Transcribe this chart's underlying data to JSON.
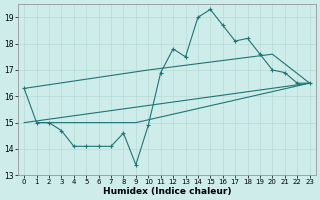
{
  "xlabel": "Humidex (Indice chaleur)",
  "xlim": [
    -0.5,
    23.5
  ],
  "ylim": [
    13,
    19.5
  ],
  "yticks": [
    13,
    14,
    15,
    16,
    17,
    18,
    19
  ],
  "xticks": [
    0,
    1,
    2,
    3,
    4,
    5,
    6,
    7,
    8,
    9,
    10,
    11,
    12,
    13,
    14,
    15,
    16,
    17,
    18,
    19,
    20,
    21,
    22,
    23
  ],
  "bg_color": "#cdecea",
  "line_color": "#1e7575",
  "grid_color": "#b8dcd8",
  "line1_x": [
    0,
    1,
    2,
    3,
    4,
    5,
    6,
    7,
    8,
    9,
    10,
    11,
    12,
    13,
    14,
    15,
    16,
    17,
    18,
    19,
    20,
    21,
    22,
    23
  ],
  "line1_y": [
    16.3,
    15.0,
    15.0,
    14.7,
    14.1,
    14.1,
    14.1,
    14.1,
    14.6,
    13.4,
    14.9,
    16.9,
    17.8,
    17.5,
    19.0,
    19.3,
    18.7,
    18.1,
    18.2,
    17.6,
    17.0,
    16.9,
    16.5,
    16.5
  ],
  "line2_x": [
    0,
    10,
    20,
    23
  ],
  "line2_y": [
    16.3,
    17.0,
    17.6,
    16.5
  ],
  "line3_x": [
    0,
    23
  ],
  "line3_y": [
    15.0,
    16.5
  ],
  "line4_x": [
    1,
    9,
    23
  ],
  "line4_y": [
    15.0,
    15.0,
    16.5
  ],
  "marker_x": [
    0,
    1,
    2,
    3,
    4,
    5,
    6,
    7,
    8,
    9,
    10,
    11,
    12,
    13,
    14,
    15,
    16,
    17,
    18,
    19,
    20,
    21,
    22,
    23
  ],
  "marker_y": [
    16.3,
    15.0,
    15.0,
    14.7,
    14.1,
    14.1,
    14.1,
    14.1,
    14.6,
    13.4,
    14.9,
    16.9,
    17.8,
    17.5,
    19.0,
    19.3,
    18.7,
    18.1,
    18.2,
    17.6,
    17.0,
    16.9,
    16.5,
    16.5
  ]
}
